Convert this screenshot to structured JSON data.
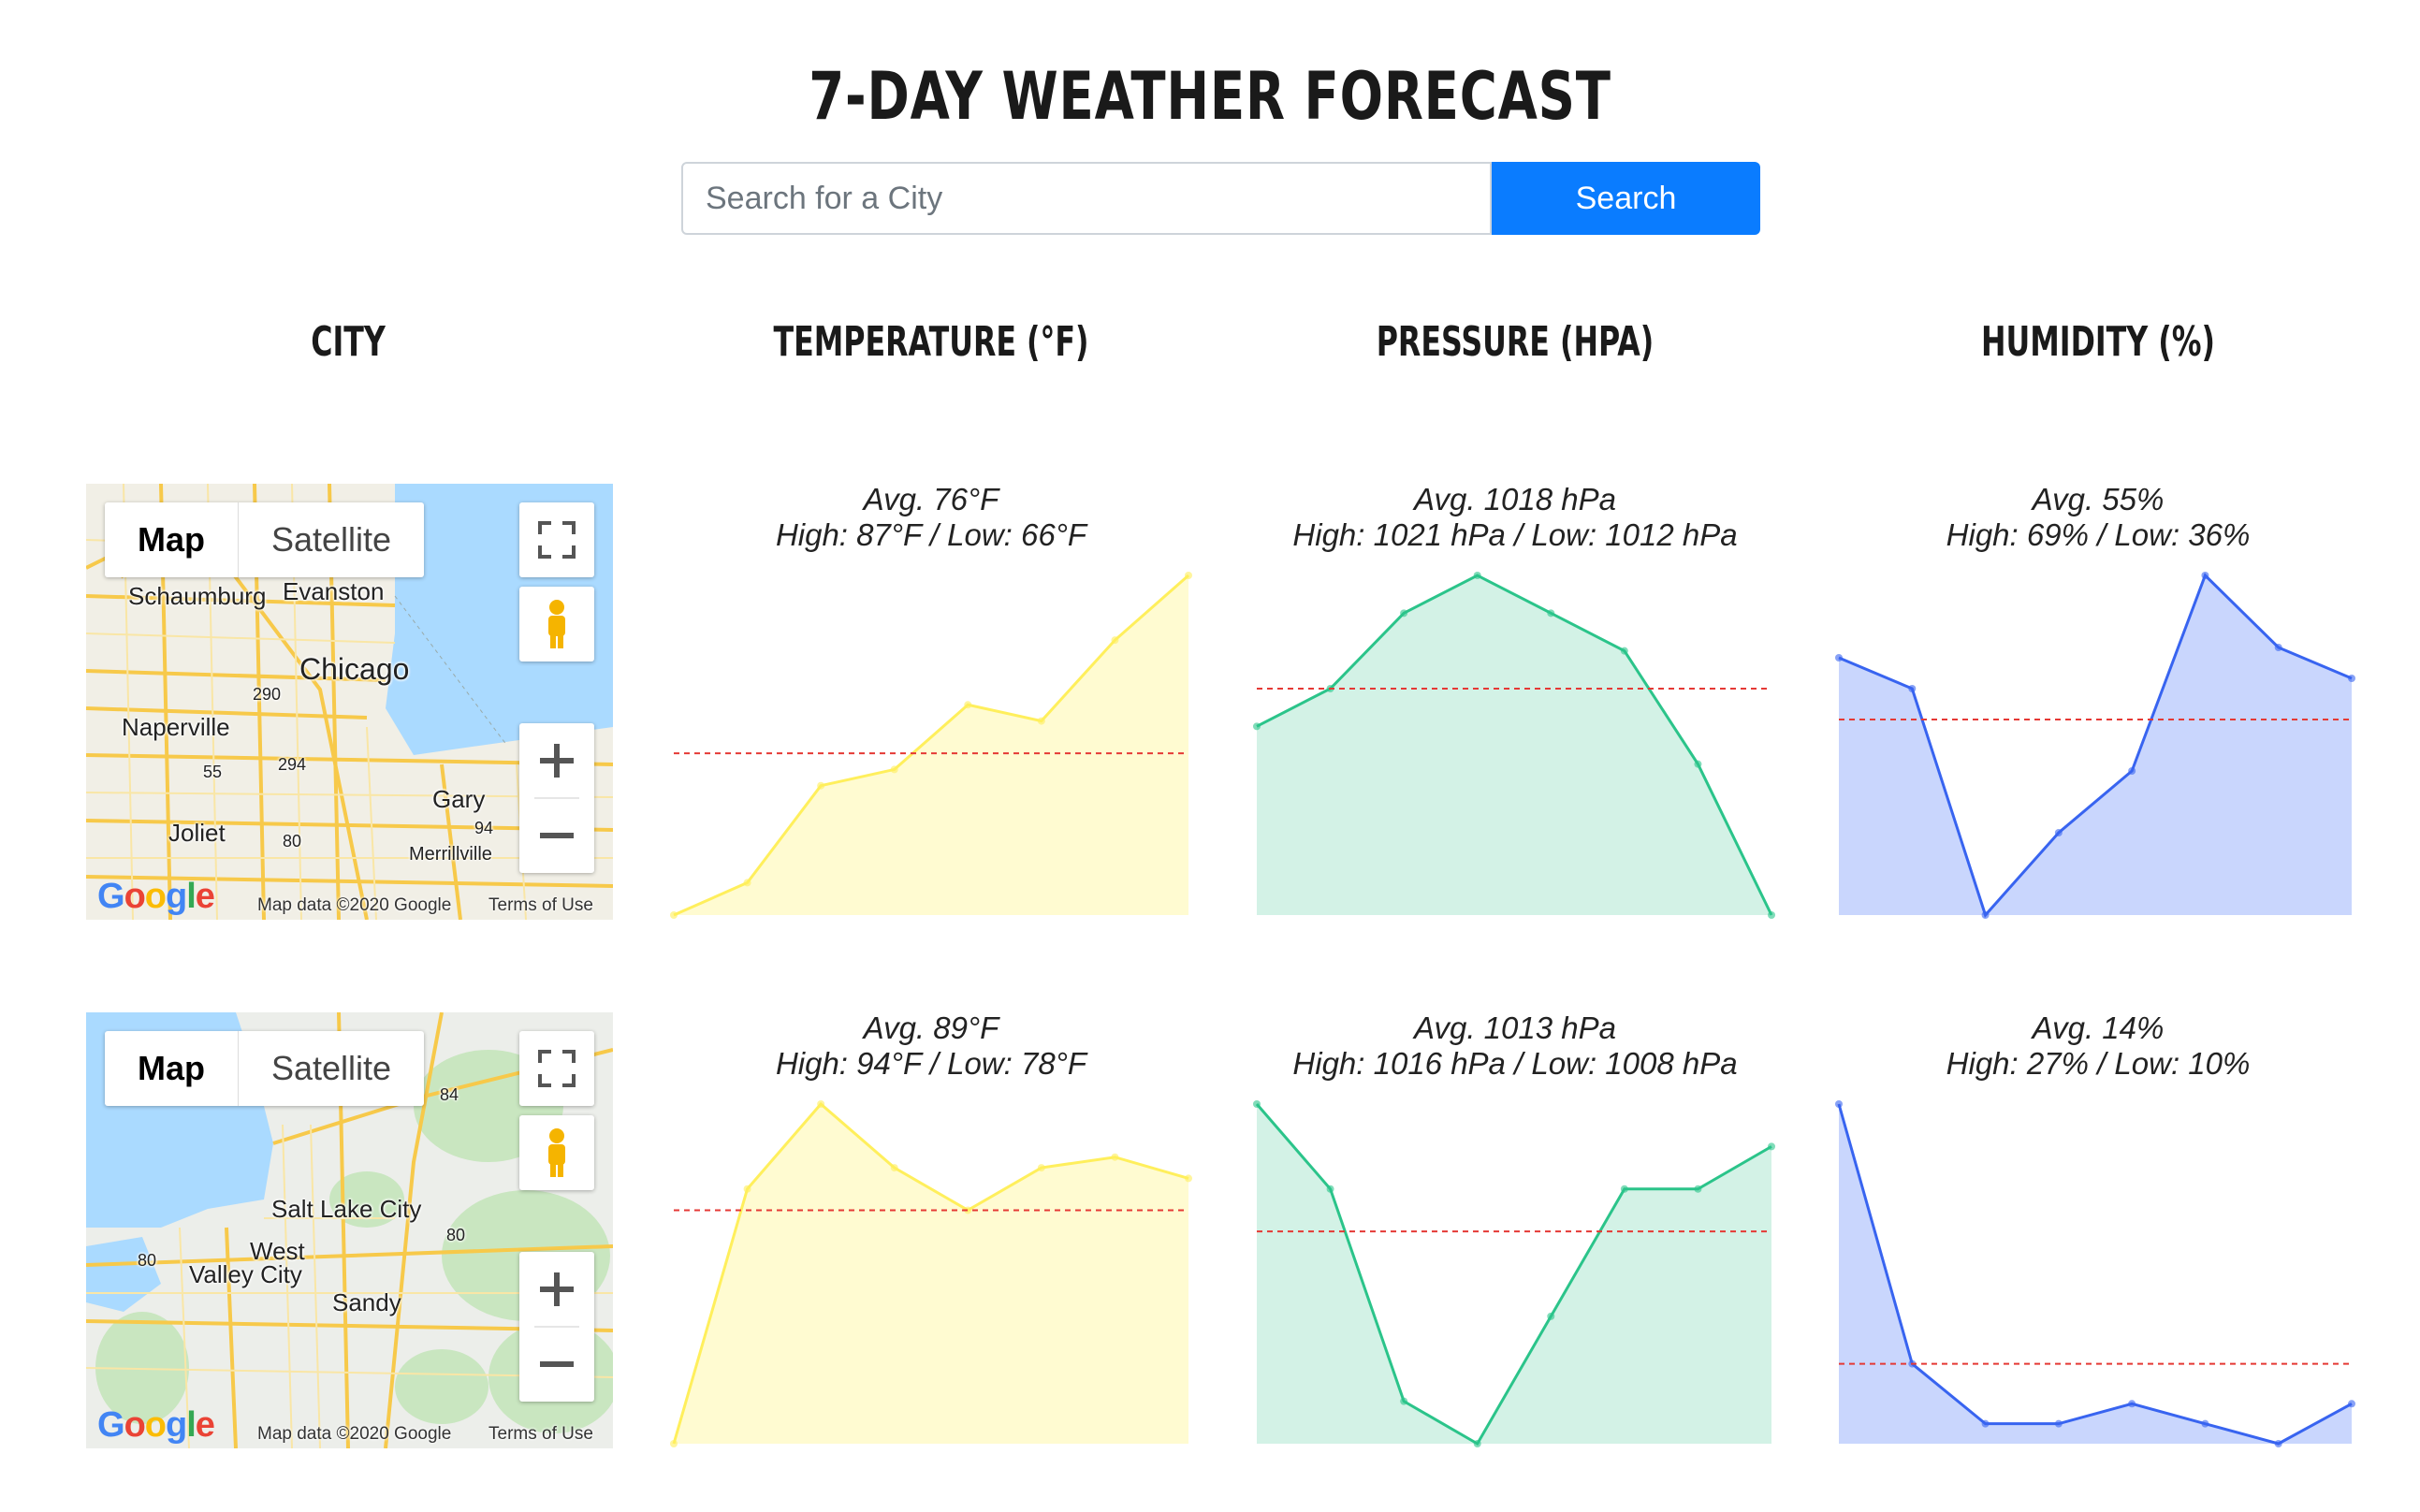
{
  "page": {
    "title": "7-DAY WEATHER FORECAST"
  },
  "search": {
    "placeholder": "Search for a City",
    "button_label": "Search"
  },
  "columns": [
    "CITY",
    "TEMPERATURE (°F)",
    "PRESSURE (HPA)",
    "HUMIDITY (%)"
  ],
  "map_controls": {
    "map_label": "Map",
    "satellite_label": "Satellite",
    "attribution": "Map data ©2020 Google",
    "terms": "Terms of Use",
    "logo": "Google"
  },
  "rows": [
    {
      "map_labels": [
        "Schaumburg",
        "Evanston",
        "Chicago",
        "Naperville",
        "Joliet",
        "Gary",
        "Merrillville",
        "290",
        "55",
        "294",
        "80",
        "94"
      ],
      "temperature": {
        "avg": "Avg. 76°F",
        "range": "High: 87°F / Low: 66°F"
      },
      "pressure": {
        "avg": "Avg. 1018 hPa",
        "range": "High: 1021 hPa / Low: 1012 hPa"
      },
      "humidity": {
        "avg": "Avg. 55%",
        "range": "High: 69% / Low: 36%"
      }
    },
    {
      "map_labels": [
        "Salt Lake City",
        "West",
        "Valley City",
        "Sandy",
        "84",
        "80",
        "80"
      ],
      "temperature": {
        "avg": "Avg. 89°F",
        "range": "High: 94°F / Low: 78°F"
      },
      "pressure": {
        "avg": "Avg. 1013 hPa",
        "range": "High: 1016 hPa / Low: 1008 hPa"
      },
      "humidity": {
        "avg": "Avg. 14%",
        "range": "High: 27% / Low: 10%"
      }
    }
  ],
  "colors": {
    "temperature_line": "#ffef5c",
    "temperature_fill": "#fffbd1",
    "pressure_line": "#2bc48a",
    "pressure_fill": "#d3f2e6",
    "humidity_line": "#3864f0",
    "humidity_fill": "#c9d6fd",
    "avg_line": "#e53935",
    "search_button": "#0a7cff"
  },
  "chart_data": [
    {
      "type": "area",
      "title": "Avg. 76°F",
      "series": [
        {
          "values": [
            66,
            68,
            74,
            75,
            79,
            78,
            83,
            87
          ]
        }
      ],
      "average": 76,
      "ylim": [
        66,
        87
      ]
    },
    {
      "type": "area",
      "title": "Avg. 1018 hPa",
      "series": [
        {
          "values": [
            1017,
            1018,
            1020,
            1021,
            1020,
            1019,
            1016,
            1012
          ]
        }
      ],
      "average": 1018,
      "ylim": [
        1012,
        1021
      ]
    },
    {
      "type": "area",
      "title": "Avg. 55%",
      "series": [
        {
          "values": [
            61,
            58,
            36,
            44,
            50,
            69,
            62,
            59
          ]
        }
      ],
      "average": 55,
      "ylim": [
        36,
        69
      ]
    },
    {
      "type": "area",
      "title": "Avg. 89°F",
      "series": [
        {
          "values": [
            78,
            90,
            94,
            91,
            89,
            91,
            91.5,
            90.5
          ]
        }
      ],
      "average": 89,
      "ylim": [
        78,
        94
      ]
    },
    {
      "type": "area",
      "title": "Avg. 1013 hPa",
      "series": [
        {
          "values": [
            1016,
            1014,
            1009,
            1008,
            1011,
            1014,
            1014,
            1015
          ]
        }
      ],
      "average": 1013,
      "ylim": [
        1008,
        1016
      ]
    },
    {
      "type": "area",
      "title": "Avg. 14%",
      "series": [
        {
          "values": [
            27,
            14,
            11,
            11,
            12,
            11,
            10,
            12
          ]
        }
      ],
      "average": 14,
      "ylim": [
        10,
        27
      ]
    }
  ]
}
